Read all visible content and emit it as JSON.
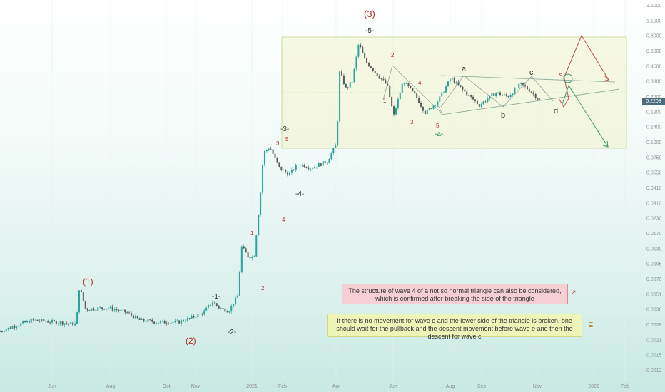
{
  "chart_data": {
    "type": "candlestick",
    "y_scale": "log",
    "ylim": [
      0.0009,
      1.6
    ],
    "price_ticks": [
      "1.5000",
      "1.1000",
      "0.8000",
      "0.6000",
      "0.4500",
      "0.3300",
      "0.2500",
      "0.1900",
      "0.1400",
      "0.1000",
      "0.0750",
      "0.0550",
      "0.0410",
      "0.0310",
      "0.0230",
      "0.0170",
      "0.0130",
      "0.0095",
      "0.0070",
      "0.0051",
      "0.0038",
      "0.0028",
      "0.0021",
      "0.0015",
      "0.0012"
    ],
    "current_price": "0.2208",
    "time_ticks": [
      "Jun",
      "Aug",
      "Oct",
      "Nov",
      "2021",
      "Feb",
      "Apr",
      "Jun",
      "Aug",
      "Sep",
      "Nov",
      "2022",
      "Feb"
    ],
    "wave_labels": {
      "major": [
        "(1)",
        "(2)",
        "(3)"
      ],
      "intermediate": [
        "-1-",
        "-2-",
        "-3-",
        "-4-",
        "-5-"
      ],
      "minor": [
        "1",
        "2",
        "3",
        "4",
        "5"
      ],
      "subminor": [
        "1",
        "2",
        "3",
        "4",
        "5"
      ],
      "triangle": [
        "a",
        "b",
        "c",
        "d",
        "e"
      ],
      "green": [
        "-a-"
      ]
    },
    "price_path": [
      [
        0,
        0.0019
      ],
      [
        0.02,
        0.0021
      ],
      [
        0.05,
        0.0024
      ],
      [
        0.09,
        0.0023
      ],
      [
        0.12,
        0.0022
      ],
      [
        0.125,
        0.0048
      ],
      [
        0.135,
        0.003
      ],
      [
        0.17,
        0.0031
      ],
      [
        0.2,
        0.0028
      ],
      [
        0.22,
        0.0024
      ],
      [
        0.25,
        0.0023
      ],
      [
        0.28,
        0.0023
      ],
      [
        0.3,
        0.0025
      ],
      [
        0.32,
        0.0028
      ],
      [
        0.335,
        0.0035
      ],
      [
        0.345,
        0.0031
      ],
      [
        0.36,
        0.0029
      ],
      [
        0.375,
        0.004
      ],
      [
        0.38,
        0.011
      ],
      [
        0.39,
        0.009
      ],
      [
        0.4,
        0.0088
      ],
      [
        0.41,
        0.032
      ],
      [
        0.415,
        0.075
      ],
      [
        0.425,
        0.085
      ],
      [
        0.44,
        0.055
      ],
      [
        0.455,
        0.048
      ],
      [
        0.47,
        0.06
      ],
      [
        0.49,
        0.055
      ],
      [
        0.515,
        0.063
      ],
      [
        0.53,
        0.09
      ],
      [
        0.535,
        0.4
      ],
      [
        0.545,
        0.28
      ],
      [
        0.555,
        0.33
      ],
      [
        0.565,
        0.72
      ],
      [
        0.575,
        0.5
      ],
      [
        0.59,
        0.4
      ],
      [
        0.61,
        0.3
      ],
      [
        0.62,
        0.16
      ],
      [
        0.635,
        0.33
      ],
      [
        0.655,
        0.24
      ],
      [
        0.67,
        0.17
      ],
      [
        0.69,
        0.22
      ],
      [
        0.71,
        0.35
      ],
      [
        0.73,
        0.27
      ],
      [
        0.755,
        0.2
      ],
      [
        0.78,
        0.26
      ],
      [
        0.8,
        0.24
      ],
      [
        0.82,
        0.31
      ],
      [
        0.835,
        0.27
      ],
      [
        0.85,
        0.22
      ]
    ]
  },
  "notes": {
    "red": "The structure of wave 4 of a not so normal triangle can also be considered, which is confirmed after breaking the side of the triangle",
    "yellow": "If there is no movement for wave e and the lower side of the triangle is broken, one should wait for the pullback and the descent movement before wave e and then the descent for wave c"
  },
  "colors": {
    "candle_up": "#26a69a",
    "candle_down": "#5a5a5a",
    "wave_red": "#b22d2d",
    "wave_green": "#1e8a5a",
    "scenario_red": "#c0504d",
    "scenario_green": "#3d9970",
    "zone_fill": "#f2f4d0",
    "zone_border": "#c4d48a"
  }
}
